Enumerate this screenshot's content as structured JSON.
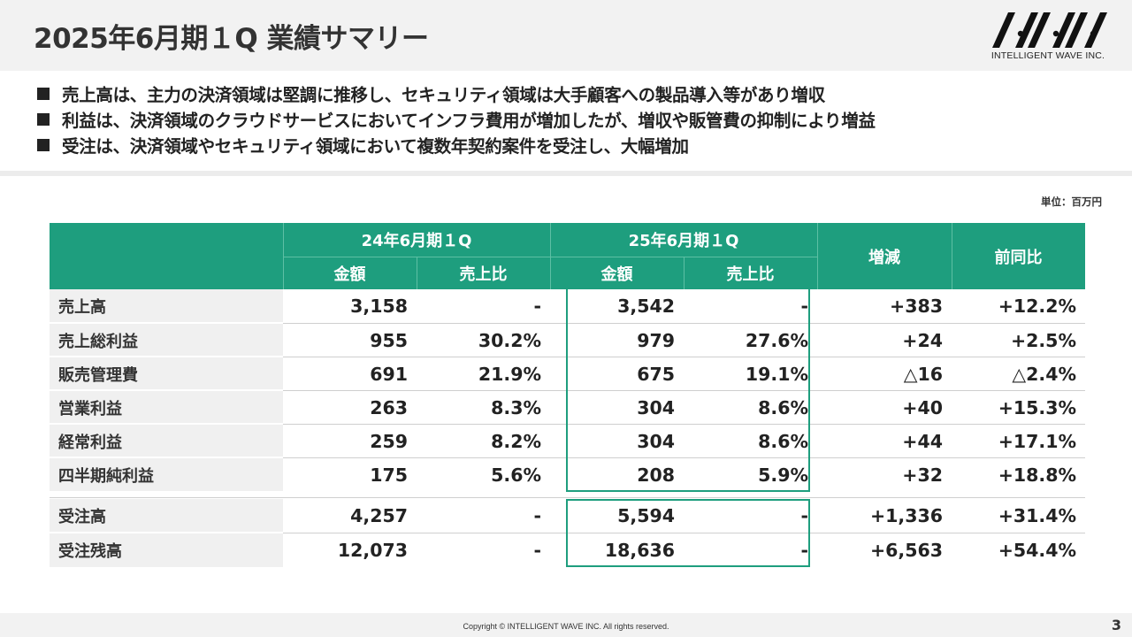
{
  "title": "2025年6月期１Q 業績サマリー",
  "logo": {
    "text": "INTELLIGENT WAVE INC.",
    "color": "#111111"
  },
  "bullets": [
    "売上高は、主力の決済領域は堅調に推移し、セキュリティ領域は大手顧客への製品導入等があり増収",
    "利益は、決済領域のクラウドサービスにおいてインフラ費用が増加したが、増収や販管費の抑制により増益",
    "受注は、決済領域やセキュリティ領域において複数年契約案件を受注し、大幅増加"
  ],
  "unit": "単位：百万円",
  "table": {
    "header_color": "#1e9e7e",
    "period1": "24年6月期１Q",
    "period2": "25年6月期１Q",
    "col_amount": "金額",
    "col_ratio": "売上比",
    "col_change": "増減",
    "col_yoy": "前同比",
    "rows": [
      {
        "label": "売上高",
        "a1": "3,158",
        "r1": "-",
        "a2": "3,542",
        "r2": "-",
        "chg": "+383",
        "yoy": "+12.2%"
      },
      {
        "label": "売上総利益",
        "a1": "955",
        "r1": "30.2%",
        "a2": "979",
        "r2": "27.6%",
        "chg": "+24",
        "yoy": "+2.5%"
      },
      {
        "label": "販売管理費",
        "a1": "691",
        "r1": "21.9%",
        "a2": "675",
        "r2": "19.1%",
        "chg": "△16",
        "yoy": "△2.4%"
      },
      {
        "label": "営業利益",
        "a1": "263",
        "r1": "8.3%",
        "a2": "304",
        "r2": "8.6%",
        "chg": "+40",
        "yoy": "+15.3%"
      },
      {
        "label": "経常利益",
        "a1": "259",
        "r1": "8.2%",
        "a2": "304",
        "r2": "8.6%",
        "chg": "+44",
        "yoy": "+17.1%"
      },
      {
        "label": "四半期純利益",
        "a1": "175",
        "r1": "5.6%",
        "a2": "208",
        "r2": "5.9%",
        "chg": "+32",
        "yoy": "+18.8%"
      }
    ],
    "orders": [
      {
        "label": "受注高",
        "a1": "4,257",
        "r1": "-",
        "a2": "5,594",
        "r2": "-",
        "chg": "+1,336",
        "yoy": "+31.4%"
      },
      {
        "label": "受注残高",
        "a1": "12,073",
        "r1": "-",
        "a2": "18,636",
        "r2": "-",
        "chg": "+6,563",
        "yoy": "+54.4%"
      }
    ]
  },
  "footer": {
    "copyright": "Copyright © INTELLIGENT WAVE INC. All rights reserved.",
    "page": "3"
  }
}
